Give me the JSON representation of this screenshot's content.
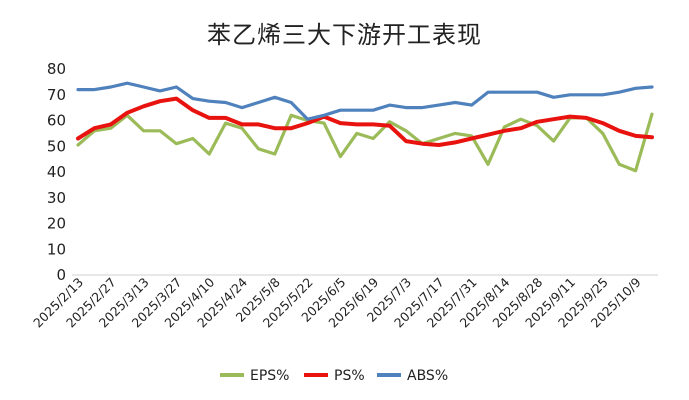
{
  "chart_data": {
    "type": "line",
    "title": "苯乙烯三大下游开工表现",
    "ylim": [
      0,
      80
    ],
    "yticks": [
      "0",
      "10",
      "20",
      "30",
      "40",
      "50",
      "60",
      "70",
      "80"
    ],
    "x": [
      "2025/2/13",
      "2025/2/20",
      "2025/2/27",
      "2025/3/6",
      "2025/3/13",
      "2025/3/20",
      "2025/3/27",
      "2025/4/3",
      "2025/4/10",
      "2025/4/17",
      "2025/4/24",
      "2025/5/1",
      "2025/5/8",
      "2025/5/15",
      "2025/5/22",
      "2025/5/29",
      "2025/6/5",
      "2025/6/12",
      "2025/6/19",
      "2025/6/26",
      "2025/7/3",
      "2025/7/10",
      "2025/7/17",
      "2025/7/24",
      "2025/7/31",
      "2025/8/7",
      "2025/8/14",
      "2025/8/21",
      "2025/8/28",
      "2025/9/4",
      "2025/9/11",
      "2025/9/18",
      "2025/9/25",
      "2025/10/2",
      "2025/10/9",
      "2025/10/16"
    ],
    "x_tick_labels": [
      "2025/2/13",
      "2025/2/27",
      "2025/3/13",
      "2025/3/27",
      "2025/4/10",
      "2025/4/24",
      "2025/5/8",
      "2025/5/22",
      "2025/6/5",
      "2025/6/19",
      "2025/7/3",
      "2025/7/17",
      "2025/7/31",
      "2025/8/14",
      "2025/8/28",
      "2025/9/11",
      "2025/9/25",
      "2025/10/9"
    ],
    "series": [
      {
        "name": "EPS%",
        "color": "#9BBB59",
        "values": [
          50.5,
          56,
          57,
          62,
          56,
          56,
          51,
          53,
          47,
          59,
          57,
          49,
          47,
          62,
          60,
          59,
          46,
          55,
          53,
          59.5,
          56,
          51,
          53,
          55,
          54,
          43,
          57.5,
          60.5,
          58,
          52,
          61,
          61,
          55,
          43,
          40.5,
          62.5
        ]
      },
      {
        "name": "PS%",
        "color": "#E8130F",
        "values": [
          53,
          57,
          58.5,
          63,
          65.5,
          67.5,
          68.5,
          64,
          61,
          61,
          58.5,
          58.5,
          57,
          57,
          59,
          61.5,
          59,
          58.5,
          58.5,
          58,
          52,
          51,
          50.5,
          51.5,
          53,
          54.5,
          56,
          57,
          59.5,
          60.5,
          61.5,
          61,
          59,
          56,
          54,
          53.5
        ]
      },
      {
        "name": "ABS%",
        "color": "#4F81BD",
        "values": [
          72,
          72,
          73,
          74.5,
          73,
          71.5,
          73,
          68.5,
          67.5,
          67,
          65,
          67,
          69,
          67,
          60.5,
          62,
          64,
          64,
          64,
          66,
          65,
          65,
          66,
          67,
          66,
          71,
          71,
          71,
          71,
          69,
          70,
          70,
          70,
          71,
          72.5,
          73
        ]
      }
    ],
    "legend_position": "bottom",
    "grid": false
  }
}
